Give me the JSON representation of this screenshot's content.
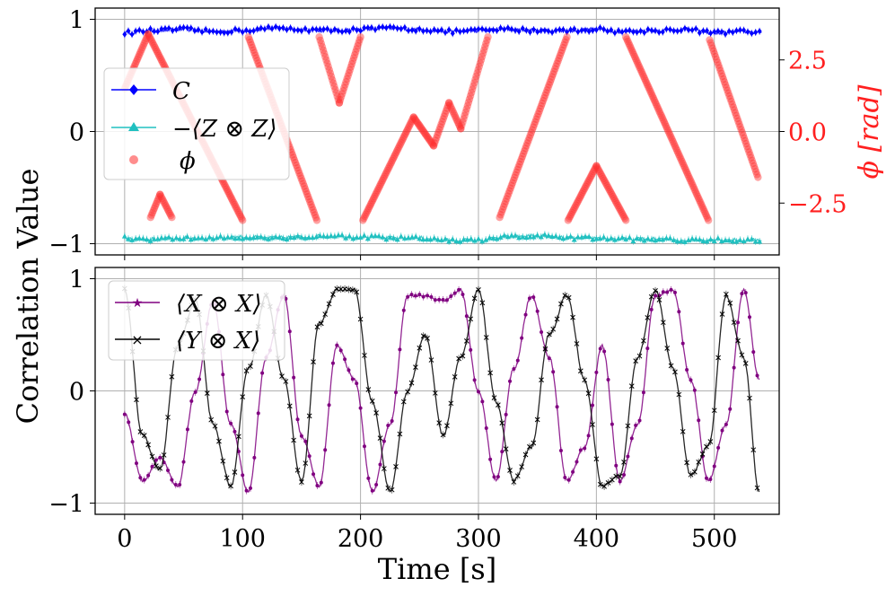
{
  "chart_data": [
    {
      "panel": "top",
      "type": "line",
      "xlabel": "Time [s]",
      "ylabel_shared": "Correlation Value",
      "ylabel_right": "ϕ [rad]",
      "xlim": [
        -25,
        555
      ],
      "ylim": [
        -1.1,
        1.1
      ],
      "ylim_right": [
        -4.31,
        4.31
      ],
      "x_ticks": [
        0,
        100,
        200,
        300,
        400,
        500
      ],
      "y_ticks": [
        -1,
        0,
        1
      ],
      "y_tick_labels": [
        "−1",
        "0",
        "1"
      ],
      "y_ticks_right": [
        -2.5,
        0.0,
        2.5
      ],
      "y_tick_labels_right": [
        "−2.5",
        "0.0",
        "2.5"
      ],
      "grid": true,
      "legend_position": "center-left",
      "legend": [
        "C",
        "−⟨Z ⊗ Z⟩",
        "ϕ"
      ],
      "series": [
        {
          "name": "C",
          "color": "#0000ff",
          "marker": "diamond",
          "x": [
            0,
            25,
            50,
            75,
            100,
            125,
            150,
            175,
            200,
            225,
            250,
            275,
            300,
            325,
            350,
            375,
            400,
            425,
            450,
            475,
            500,
            525,
            540
          ],
          "values": [
            0.88,
            0.9,
            0.91,
            0.89,
            0.9,
            0.92,
            0.91,
            0.9,
            0.91,
            0.92,
            0.91,
            0.89,
            0.9,
            0.91,
            0.9,
            0.9,
            0.91,
            0.89,
            0.9,
            0.91,
            0.88,
            0.89,
            0.88
          ]
        },
        {
          "name": "−⟨Z ⊗ Z⟩",
          "color": "#20c0c0",
          "marker": "triangle",
          "x": [
            0,
            25,
            50,
            75,
            100,
            125,
            150,
            175,
            200,
            225,
            250,
            275,
            300,
            325,
            350,
            375,
            400,
            425,
            450,
            475,
            500,
            525,
            540
          ],
          "values": [
            -0.95,
            -0.96,
            -0.95,
            -0.95,
            -0.94,
            -0.95,
            -0.94,
            -0.93,
            -0.94,
            -0.95,
            -0.95,
            -0.97,
            -0.97,
            -0.94,
            -0.93,
            -0.95,
            -0.95,
            -0.96,
            -0.96,
            -0.97,
            -0.96,
            -0.97,
            -0.97
          ],
          "ylim": [
            -1.1,
            1.1
          ]
        },
        {
          "name": "ϕ",
          "color": "#ff3030",
          "marker": "circle",
          "axis": "right",
          "segments": [
            {
              "x": [
                0,
                20
              ],
              "values": [
                1.5,
                3.4
              ]
            },
            {
              "x": [
                20,
                100
              ],
              "values": [
                3.4,
                -3.1
              ]
            },
            {
              "x": [
                22,
                30
              ],
              "values": [
                -3.0,
                -2.2
              ]
            },
            {
              "x": [
                30,
                40
              ],
              "values": [
                -2.2,
                -3.0
              ]
            },
            {
              "x": [
                105,
                163
              ],
              "values": [
                3.3,
                -3.1
              ]
            },
            {
              "x": [
                165,
                182
              ],
              "values": [
                3.3,
                1.0
              ]
            },
            {
              "x": [
                182,
                200
              ],
              "values": [
                1.0,
                3.3
              ]
            },
            {
              "x": [
                202,
                245
              ],
              "values": [
                -3.1,
                0.5
              ]
            },
            {
              "x": [
                245,
                262
              ],
              "values": [
                0.5,
                -0.5
              ]
            },
            {
              "x": [
                262,
                275
              ],
              "values": [
                -0.5,
                1.0
              ]
            },
            {
              "x": [
                275,
                285
              ],
              "values": [
                1.0,
                0.1
              ]
            },
            {
              "x": [
                285,
                308
              ],
              "values": [
                0.1,
                3.3
              ]
            },
            {
              "x": [
                318,
                375
              ],
              "values": [
                -3.0,
                3.3
              ]
            },
            {
              "x": [
                376,
                400
              ],
              "values": [
                -3.1,
                -1.2
              ]
            },
            {
              "x": [
                400,
                425
              ],
              "values": [
                -1.2,
                -3.1
              ]
            },
            {
              "x": [
                425,
                495
              ],
              "values": [
                3.3,
                -3.1
              ]
            },
            {
              "x": [
                496,
                537
              ],
              "values": [
                3.2,
                -1.6
              ]
            }
          ]
        }
      ]
    },
    {
      "panel": "bottom",
      "type": "line",
      "xlabel": "Time [s]",
      "xlim": [
        -25,
        555
      ],
      "ylim": [
        -1.1,
        1.1
      ],
      "x_ticks": [
        0,
        100,
        200,
        300,
        400,
        500
      ],
      "x_tick_labels": [
        "0",
        "100",
        "200",
        "300",
        "400",
        "500"
      ],
      "y_ticks": [
        -1,
        0,
        1
      ],
      "y_tick_labels": [
        "−1",
        "0",
        "1"
      ],
      "grid": true,
      "legend_position": "top-left",
      "legend": [
        "⟨X ⊗ X⟩",
        "⟨Y ⊗ X⟩"
      ],
      "series": [
        {
          "name": "⟨X ⊗ X⟩",
          "color": "#800080",
          "marker": "star",
          "x": [
            0,
            15,
            30,
            45,
            60,
            75,
            90,
            105,
            120,
            135,
            150,
            165,
            180,
            195,
            210,
            225,
            240,
            255,
            270,
            285,
            300,
            315,
            330,
            345,
            360,
            375,
            390,
            405,
            420,
            435,
            450,
            465,
            480,
            495,
            510,
            525,
            538
          ],
          "values": [
            -0.2,
            -0.8,
            -0.6,
            -0.85,
            0.0,
            0.8,
            -0.3,
            -0.9,
            0.3,
            0.85,
            -0.4,
            -0.85,
            0.4,
            0.1,
            -0.9,
            -0.3,
            0.85,
            0.85,
            0.8,
            0.9,
            0.0,
            -0.8,
            0.2,
            0.85,
            0.3,
            -0.8,
            -0.5,
            0.4,
            -0.8,
            -0.3,
            0.85,
            0.9,
            0.1,
            -0.8,
            -0.3,
            0.9,
            0.1
          ]
        },
        {
          "name": "⟨Y ⊗ X⟩",
          "color": "#000000",
          "marker": "x",
          "x": [
            0,
            15,
            30,
            45,
            60,
            75,
            90,
            105,
            120,
            135,
            150,
            165,
            180,
            195,
            210,
            225,
            240,
            255,
            270,
            285,
            300,
            315,
            330,
            345,
            360,
            375,
            390,
            405,
            420,
            435,
            450,
            465,
            480,
            495,
            510,
            525,
            538
          ],
          "values": [
            0.9,
            -0.4,
            -0.7,
            0.4,
            0.8,
            -0.3,
            -0.85,
            0.2,
            0.85,
            0.1,
            -0.8,
            0.6,
            0.9,
            0.9,
            -0.1,
            -0.9,
            0.0,
            0.5,
            -0.4,
            0.3,
            0.9,
            -0.1,
            -0.8,
            -0.5,
            0.5,
            0.85,
            0.1,
            -0.85,
            -0.75,
            0.3,
            0.9,
            0.2,
            -0.75,
            -0.5,
            0.85,
            0.3,
            -0.9
          ]
        }
      ]
    }
  ]
}
